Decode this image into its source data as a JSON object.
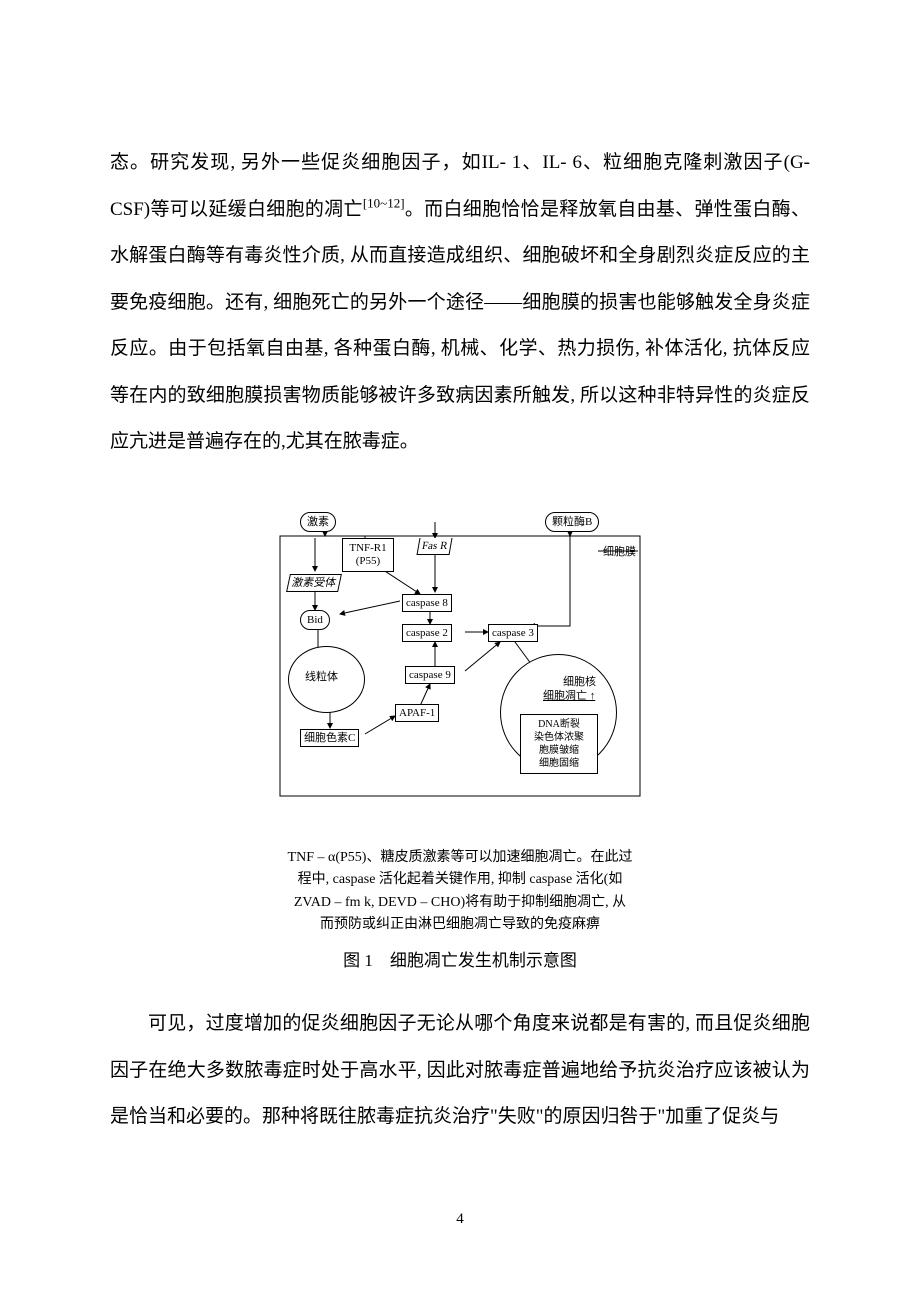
{
  "paragraph1": "态。研究发现, 另外一些促炎细胞因子，如IL- 1、IL- 6、粒细胞克隆刺激因子(G- CSF)等可以延缓白细胞的凋亡",
  "paragraph1_cite": "[10~12]",
  "paragraph1_tail": "。而白细胞恰恰是释放氧自由基、弹性蛋白酶、水解蛋白酶等有毒炎性介质, 从而直接造成组织、细胞破坏和全身剧烈炎症反应的主要免疫细胞。还有, 细胞死亡的另外一个途径——细胞膜的损害也能够触发全身炎症反应。由于包括氧自由基, 各种蛋白酶, 机械、化学、热力损伤, 补体活化, 抗体反应等在内的致细胞膜损害物质能够被许多致病因素所触发, 所以这种非特异性的炎症反应亢进是普遍存在的,尤其在脓毒症。",
  "diagram": {
    "nodes": {
      "jisu": "激素",
      "tnfr1": "TNF-R1\n(P55)",
      "fasr": "Fas R",
      "granzymeB": "颗粒酶B",
      "membrane": "细胞膜",
      "jisu_receptor": "激素受体",
      "bid": "Bid",
      "caspase8": "caspase 8",
      "caspase2": "caspase 2",
      "caspase3": "caspase 3",
      "mito": "线粒体",
      "caspase9": "caspase 9",
      "apaf1": "APAF-1",
      "cytc": "细胞色素C",
      "nucleus_label": "细胞核",
      "apoptosis_up": "细胞凋亡 ↑",
      "effects": "DNA断裂\n染色体浓聚\n胞膜皱缩\n细胞固缩"
    },
    "caption_lines": [
      "TNF – α(P55)、糖皮质激素等可以加速细胞凋亡。在此过",
      "程中, caspase 活化起着关键作用, 抑制 caspase 活化(如",
      "ZVAD – fm k, DEVD – CHO)将有助于抑制细胞凋亡, 从",
      "而预防或纠正由淋巴细胞凋亡导致的免疫麻痹"
    ],
    "title": "图 1　细胞凋亡发生机制示意图"
  },
  "paragraph2": "可见，过度增加的促炎细胞因子无论从哪个角度来说都是有害的, 而且促炎细胞因子在绝大多数脓毒症时处于高水平, 因此对脓毒症普遍地给予抗炎治疗应该被认为是恰当和必要的。那种将既往脓毒症抗炎治疗\"失败\"的原因归咎于\"加重了促炎与",
  "page_number": "4",
  "colors": {
    "text": "#000000",
    "background": "#ffffff",
    "line": "#000000"
  }
}
